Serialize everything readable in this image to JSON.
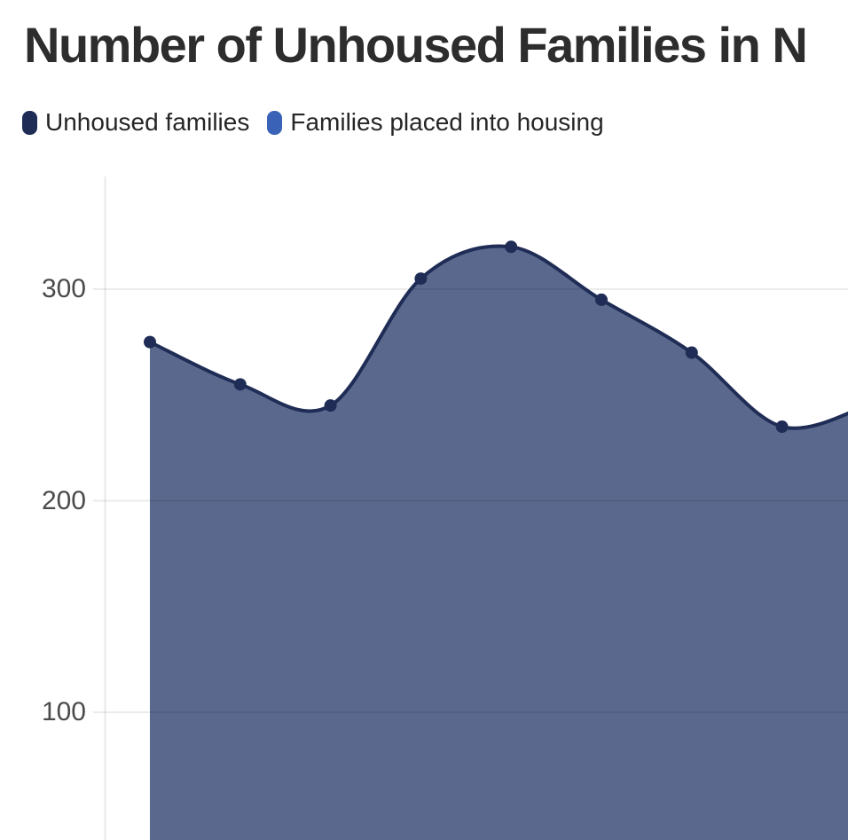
{
  "header": {
    "title": "Number of Unhoused Families in N"
  },
  "legend": {
    "items": [
      {
        "label": "Unhoused families",
        "color": "#1F2C55"
      },
      {
        "label": "Families placed into housing",
        "color": "#3A63B8"
      }
    ]
  },
  "chart_data": {
    "type": "area",
    "title": "Number of Unhoused Families in N",
    "legend_position": "top-left",
    "series": [
      {
        "name": "Unhoused families",
        "line_color": "#1F2C55",
        "fill_color": "#59688C",
        "values": [
          275,
          255,
          245,
          305,
          320,
          295,
          270,
          235
        ],
        "continuation_value_offscreen": 246
      }
    ],
    "y_axis": {
      "ticks": [
        300,
        200,
        100
      ],
      "gridlines": true,
      "visible_range": [
        40,
        353
      ]
    },
    "x_axis": {
      "labels_visible": false
    }
  },
  "colors": {
    "background": "#ffffff",
    "gridline": "rgba(0,0,0,0.08)",
    "axis_line": "#e9e9e9",
    "axis_label": "#4b4b4b",
    "title": "#2d2d2d",
    "legend_text": "#262626"
  }
}
